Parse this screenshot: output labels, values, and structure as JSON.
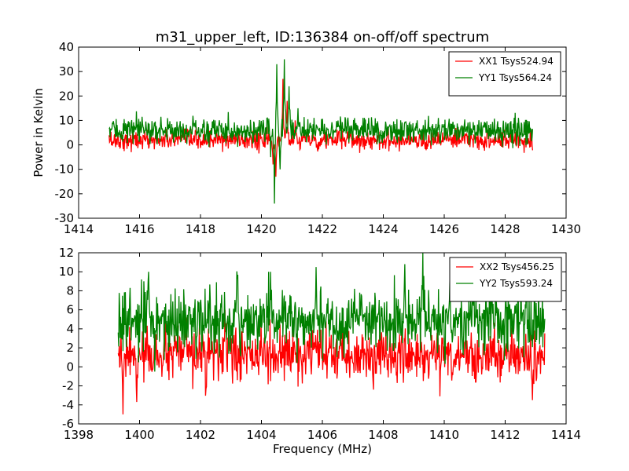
{
  "figure": {
    "title": "m31_upper_left, ID:136384 on-off/off spectrum",
    "ylabel": "Power in Kelvin",
    "xlabel": "Frequency (MHz)"
  },
  "chart_data": [
    {
      "type": "line",
      "title": "m31_upper_left, ID:136384 on-off/off spectrum",
      "ylabel": "Power in Kelvin",
      "xlim": [
        1414,
        1430
      ],
      "ylim": [
        -30,
        40
      ],
      "xticks": [
        1414,
        1416,
        1418,
        1420,
        1422,
        1424,
        1426,
        1428,
        1430
      ],
      "yticks": [
        -30,
        -20,
        -10,
        0,
        10,
        20,
        30,
        40
      ],
      "x_range": [
        1415.0,
        1428.9
      ],
      "grid": false,
      "legend_position": "top-right",
      "series": [
        {
          "name": "XX1 Tsys524.94",
          "color": "#ff0000",
          "baseline": 2,
          "noise": 2,
          "features": [
            {
              "x": 1420.38,
              "y": -8
            },
            {
              "x": 1420.48,
              "y": -13
            },
            {
              "x": 1420.7,
              "y": 27
            },
            {
              "x": 1420.85,
              "y": 18
            },
            {
              "x": 1421.1,
              "y": 10
            },
            {
              "x": 1421.5,
              "y": 5
            }
          ]
        },
        {
          "name": "YY1 Tsys564.24",
          "color": "#008000",
          "baseline": 6,
          "noise": 2.5,
          "features": [
            {
              "x": 1420.3,
              "y": -5
            },
            {
              "x": 1420.42,
              "y": -24
            },
            {
              "x": 1420.5,
              "y": 33
            },
            {
              "x": 1420.62,
              "y": -10
            },
            {
              "x": 1420.75,
              "y": 35
            },
            {
              "x": 1420.9,
              "y": 24
            },
            {
              "x": 1421.2,
              "y": 15
            },
            {
              "x": 1421.6,
              "y": 9
            }
          ]
        }
      ]
    },
    {
      "type": "line",
      "xlabel": "Frequency (MHz)",
      "xlim": [
        1398,
        1414
      ],
      "ylim": [
        -6,
        12
      ],
      "xticks": [
        1398,
        1400,
        1402,
        1404,
        1406,
        1408,
        1410,
        1412,
        1414
      ],
      "yticks": [
        -6,
        -4,
        -2,
        0,
        2,
        4,
        6,
        8,
        10,
        12
      ],
      "x_range": [
        1399.3,
        1413.3
      ],
      "grid": false,
      "legend_position": "top-right",
      "series": [
        {
          "name": "XX2 Tsys456.25",
          "color": "#ff0000",
          "baseline": 1.2,
          "noise": 1.3,
          "features": [
            {
              "x": 1399.45,
              "y": -5
            },
            {
              "x": 1399.9,
              "y": -3.7
            },
            {
              "x": 1401.5,
              "y": 5.5
            },
            {
              "x": 1402.8,
              "y": 6
            },
            {
              "x": 1412.9,
              "y": -3.5
            }
          ]
        },
        {
          "name": "YY2 Tsys593.24",
          "color": "#008000",
          "baseline": 4.8,
          "noise": 1.6,
          "features": [
            {
              "x": 1400.3,
              "y": 10
            },
            {
              "x": 1404.3,
              "y": 10
            },
            {
              "x": 1405.8,
              "y": 10.5
            },
            {
              "x": 1408.7,
              "y": 10.8
            },
            {
              "x": 1409.3,
              "y": 12
            },
            {
              "x": 1412.7,
              "y": 10.3
            },
            {
              "x": 1400.5,
              "y": -0.5
            }
          ]
        }
      ]
    }
  ]
}
